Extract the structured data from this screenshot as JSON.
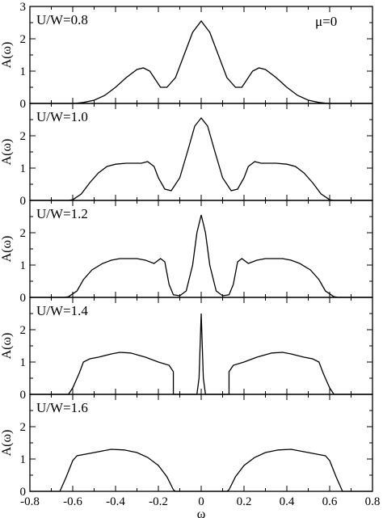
{
  "chart_data": {
    "type": "line",
    "annotation": "μ=0",
    "xlabel": "ω",
    "x_ticks": [
      "-0.8",
      "-0.6",
      "-0.4",
      "-0.2",
      "0",
      "0.2",
      "0.4",
      "0.6",
      "0.8"
    ],
    "x_tick_values": [
      -0.8,
      -0.6,
      -0.4,
      -0.2,
      0,
      0.2,
      0.4,
      0.6,
      0.8
    ],
    "xlim": [
      -0.8,
      0.8
    ],
    "panels": [
      {
        "label": "U/W=0.8",
        "ylabel": "A(ω)",
        "ylim": [
          0,
          3
        ],
        "y_ticks": [
          "0",
          "1",
          "2",
          "3"
        ],
        "y_tick_values": [
          0,
          1,
          2,
          3
        ],
        "points": [
          [
            -0.8,
            0
          ],
          [
            -0.6,
            0
          ],
          [
            -0.58,
            0.01
          ],
          [
            -0.55,
            0.03
          ],
          [
            -0.5,
            0.1
          ],
          [
            -0.45,
            0.25
          ],
          [
            -0.4,
            0.5
          ],
          [
            -0.35,
            0.8
          ],
          [
            -0.3,
            1.05
          ],
          [
            -0.27,
            1.1
          ],
          [
            -0.24,
            1.0
          ],
          [
            -0.21,
            0.7
          ],
          [
            -0.19,
            0.5
          ],
          [
            -0.16,
            0.5
          ],
          [
            -0.12,
            0.8
          ],
          [
            -0.08,
            1.5
          ],
          [
            -0.04,
            2.2
          ],
          [
            0,
            2.55
          ],
          [
            0.04,
            2.2
          ],
          [
            0.08,
            1.5
          ],
          [
            0.12,
            0.8
          ],
          [
            0.16,
            0.5
          ],
          [
            0.19,
            0.5
          ],
          [
            0.21,
            0.7
          ],
          [
            0.24,
            1.0
          ],
          [
            0.27,
            1.1
          ],
          [
            0.3,
            1.05
          ],
          [
            0.35,
            0.8
          ],
          [
            0.4,
            0.5
          ],
          [
            0.45,
            0.25
          ],
          [
            0.5,
            0.1
          ],
          [
            0.55,
            0.03
          ],
          [
            0.58,
            0.01
          ],
          [
            0.6,
            0
          ],
          [
            0.8,
            0
          ]
        ]
      },
      {
        "label": "U/W=1.0",
        "ylabel": "A(ω)",
        "ylim": [
          0,
          3
        ],
        "y_ticks": [
          "0",
          "1",
          "2"
        ],
        "y_tick_values": [
          0,
          1,
          2
        ],
        "points": [
          [
            -0.8,
            0
          ],
          [
            -0.62,
            0
          ],
          [
            -0.6,
            0.02
          ],
          [
            -0.56,
            0.2
          ],
          [
            -0.52,
            0.55
          ],
          [
            -0.48,
            0.85
          ],
          [
            -0.44,
            1.05
          ],
          [
            -0.4,
            1.12
          ],
          [
            -0.35,
            1.15
          ],
          [
            -0.28,
            1.15
          ],
          [
            -0.25,
            1.2
          ],
          [
            -0.22,
            1.05
          ],
          [
            -0.2,
            0.7
          ],
          [
            -0.17,
            0.35
          ],
          [
            -0.14,
            0.3
          ],
          [
            -0.1,
            0.7
          ],
          [
            -0.06,
            1.6
          ],
          [
            -0.03,
            2.3
          ],
          [
            0,
            2.55
          ],
          [
            0.03,
            2.3
          ],
          [
            0.06,
            1.6
          ],
          [
            0.1,
            0.7
          ],
          [
            0.14,
            0.3
          ],
          [
            0.17,
            0.35
          ],
          [
            0.2,
            0.7
          ],
          [
            0.22,
            1.05
          ],
          [
            0.25,
            1.2
          ],
          [
            0.28,
            1.15
          ],
          [
            0.35,
            1.15
          ],
          [
            0.4,
            1.12
          ],
          [
            0.44,
            1.05
          ],
          [
            0.48,
            0.85
          ],
          [
            0.52,
            0.55
          ],
          [
            0.56,
            0.2
          ],
          [
            0.6,
            0.02
          ],
          [
            0.62,
            0
          ],
          [
            0.8,
            0
          ]
        ]
      },
      {
        "label": "U/W=1.2",
        "ylabel": "A(ω)",
        "ylim": [
          0,
          3
        ],
        "y_ticks": [
          "0",
          "1",
          "2"
        ],
        "y_tick_values": [
          0,
          1,
          2
        ],
        "points": [
          [
            -0.8,
            0
          ],
          [
            -0.64,
            0
          ],
          [
            -0.62,
            0.02
          ],
          [
            -0.58,
            0.2
          ],
          [
            -0.55,
            0.55
          ],
          [
            -0.51,
            0.85
          ],
          [
            -0.46,
            1.05
          ],
          [
            -0.42,
            1.15
          ],
          [
            -0.38,
            1.2
          ],
          [
            -0.3,
            1.2
          ],
          [
            -0.26,
            1.15
          ],
          [
            -0.22,
            1.05
          ],
          [
            -0.19,
            1.2
          ],
          [
            -0.17,
            1.1
          ],
          [
            -0.15,
            0.4
          ],
          [
            -0.13,
            0.08
          ],
          [
            -0.1,
            0.05
          ],
          [
            -0.07,
            0.2
          ],
          [
            -0.04,
            1.0
          ],
          [
            -0.02,
            2.0
          ],
          [
            0,
            2.55
          ],
          [
            0.02,
            2.0
          ],
          [
            0.04,
            1.0
          ],
          [
            0.07,
            0.2
          ],
          [
            0.1,
            0.05
          ],
          [
            0.13,
            0.08
          ],
          [
            0.15,
            0.4
          ],
          [
            0.17,
            1.1
          ],
          [
            0.19,
            1.2
          ],
          [
            0.22,
            1.05
          ],
          [
            0.26,
            1.15
          ],
          [
            0.3,
            1.2
          ],
          [
            0.38,
            1.2
          ],
          [
            0.42,
            1.15
          ],
          [
            0.46,
            1.05
          ],
          [
            0.51,
            0.85
          ],
          [
            0.55,
            0.55
          ],
          [
            0.58,
            0.2
          ],
          [
            0.62,
            0.02
          ],
          [
            0.64,
            0
          ],
          [
            0.8,
            0
          ]
        ]
      },
      {
        "label": "U/W=1.4",
        "ylabel": "A(ω)",
        "ylim": [
          0,
          3
        ],
        "y_ticks": [
          "0",
          "1",
          "2"
        ],
        "y_tick_values": [
          0,
          1,
          2
        ],
        "points": [
          [
            -0.8,
            0
          ],
          [
            -0.62,
            0
          ],
          [
            -0.6,
            0.2
          ],
          [
            -0.57,
            0.65
          ],
          [
            -0.55,
            1.0
          ],
          [
            -0.52,
            1.1
          ],
          [
            -0.48,
            1.15
          ],
          [
            -0.42,
            1.25
          ],
          [
            -0.38,
            1.3
          ],
          [
            -0.33,
            1.28
          ],
          [
            -0.26,
            1.15
          ],
          [
            -0.2,
            1.0
          ],
          [
            -0.15,
            0.9
          ],
          [
            -0.13,
            0.7
          ],
          [
            -0.13,
            0
          ],
          [
            -0.02,
            0
          ],
          [
            -0.01,
            0.5
          ],
          [
            0,
            2.5
          ],
          [
            0.01,
            0.5
          ],
          [
            0.02,
            0
          ],
          [
            0.13,
            0
          ],
          [
            0.13,
            0.7
          ],
          [
            0.15,
            0.9
          ],
          [
            0.2,
            1.0
          ],
          [
            0.26,
            1.15
          ],
          [
            0.33,
            1.28
          ],
          [
            0.38,
            1.3
          ],
          [
            0.42,
            1.25
          ],
          [
            0.48,
            1.15
          ],
          [
            0.52,
            1.1
          ],
          [
            0.55,
            1.0
          ],
          [
            0.57,
            0.65
          ],
          [
            0.6,
            0.2
          ],
          [
            0.62,
            0
          ],
          [
            0.8,
            0
          ]
        ]
      },
      {
        "label": "U/W=1.6",
        "ylabel": "A(ω)",
        "ylim": [
          0,
          3
        ],
        "y_ticks": [
          "0",
          "1",
          "2"
        ],
        "y_tick_values": [
          0,
          1,
          2
        ],
        "points": [
          [
            -0.8,
            0
          ],
          [
            -0.66,
            0
          ],
          [
            -0.63,
            0.45
          ],
          [
            -0.6,
            0.95
          ],
          [
            -0.58,
            1.1
          ],
          [
            -0.54,
            1.15
          ],
          [
            -0.5,
            1.2
          ],
          [
            -0.42,
            1.3
          ],
          [
            -0.36,
            1.28
          ],
          [
            -0.3,
            1.2
          ],
          [
            -0.25,
            1.05
          ],
          [
            -0.2,
            0.8
          ],
          [
            -0.16,
            0.45
          ],
          [
            -0.13,
            0.05
          ],
          [
            -0.12,
            0
          ],
          [
            0.12,
            0
          ],
          [
            0.13,
            0.05
          ],
          [
            0.16,
            0.45
          ],
          [
            0.2,
            0.8
          ],
          [
            0.25,
            1.05
          ],
          [
            0.3,
            1.2
          ],
          [
            0.36,
            1.28
          ],
          [
            0.42,
            1.3
          ],
          [
            0.5,
            1.2
          ],
          [
            0.54,
            1.15
          ],
          [
            0.58,
            1.1
          ],
          [
            0.6,
            0.95
          ],
          [
            0.63,
            0.45
          ],
          [
            0.66,
            0
          ],
          [
            0.8,
            0
          ]
        ]
      }
    ]
  }
}
